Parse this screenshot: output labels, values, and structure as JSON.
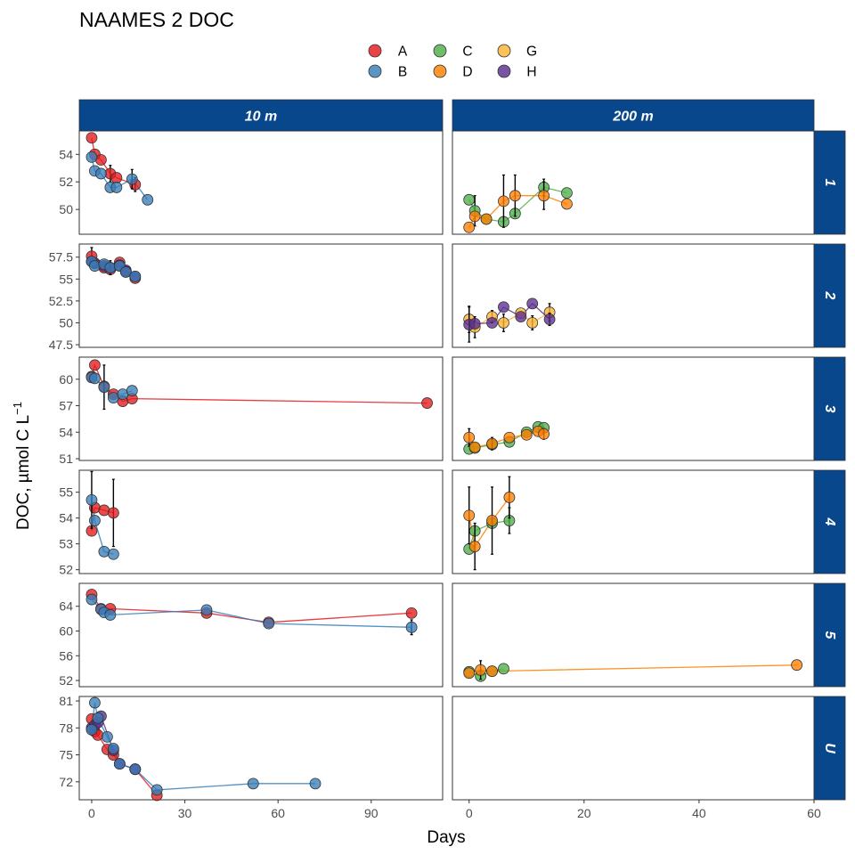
{
  "chart_data": {
    "type": "scatter",
    "title": "NAAMES 2 DOC",
    "xlabel": "Days",
    "ylabel_main": "DOC, µmol C L",
    "ylabel_sup": "−1",
    "column_strips": [
      "10 m",
      "200 m"
    ],
    "row_strips": [
      "1",
      "2",
      "3",
      "4",
      "5",
      "U"
    ],
    "xlim_left": [
      -4,
      113
    ],
    "xticks_left": [
      0,
      30,
      60,
      90
    ],
    "xlim_right": [
      -2.9,
      60
    ],
    "xticks_right": [
      0,
      20,
      40,
      60
    ],
    "colors": {
      "A": "#e41a1c",
      "B": "#377eb8",
      "C": "#4daf4a",
      "D": "#ff7f00",
      "G": "#fdb333",
      "H": "#5c2d91",
      "strip": "#08478c",
      "strip_text": "#ffffff"
    },
    "legend": {
      "placement": "top",
      "entries": [
        "A",
        "B",
        "C",
        "D",
        "G",
        "H"
      ]
    },
    "panels": [
      {
        "row": "1",
        "ylim": [
          48.2,
          55.7
        ],
        "yticks": [
          50,
          52,
          54
        ],
        "left": [
          {
            "name": "A",
            "points": [
              [
                0,
                55.2,
                0
              ],
              [
                1,
                54.0,
                0
              ],
              [
                3,
                53.6,
                0
              ],
              [
                6,
                52.6,
                0.6
              ],
              [
                8,
                52.3,
                0
              ],
              [
                14,
                51.8,
                0.5
              ]
            ]
          },
          {
            "name": "B",
            "points": [
              [
                0,
                53.8,
                0
              ],
              [
                1,
                52.8,
                0
              ],
              [
                3,
                52.6,
                0
              ],
              [
                6,
                51.6,
                0
              ],
              [
                8,
                51.6,
                0
              ],
              [
                13,
                52.2,
                0.7
              ],
              [
                18,
                50.7,
                0
              ]
            ]
          }
        ],
        "right": [
          {
            "name": "C",
            "points": [
              [
                0,
                50.7,
                0
              ],
              [
                1,
                49.9,
                1.1
              ],
              [
                3,
                49.3,
                0
              ],
              [
                6,
                49.1,
                0
              ],
              [
                8,
                49.7,
                0
              ],
              [
                13,
                51.6,
                0.6
              ],
              [
                17,
                51.2,
                0
              ]
            ]
          },
          {
            "name": "D",
            "points": [
              [
                0,
                48.7,
                0
              ],
              [
                1,
                49.5,
                0
              ],
              [
                3,
                49.3,
                0
              ],
              [
                6,
                50.6,
                1.9
              ],
              [
                8,
                51.0,
                1.5
              ],
              [
                13,
                51.0,
                1.0
              ],
              [
                17,
                50.4,
                0
              ]
            ]
          }
        ]
      },
      {
        "row": "2",
        "ylim": [
          47.2,
          59.0
        ],
        "yticks": [
          47.5,
          50.0,
          52.5,
          55.0,
          57.5
        ],
        "left": [
          {
            "name": "A",
            "points": [
              [
                0,
                57.6,
                1.0
              ],
              [
                1,
                56.8,
                0
              ],
              [
                4,
                56.3,
                0
              ],
              [
                6,
                56.1,
                0
              ],
              [
                9,
                56.9,
                0
              ],
              [
                11,
                55.9,
                0
              ],
              [
                14,
                55.1,
                0
              ]
            ]
          },
          {
            "name": "H",
            "points": [
              [
                0,
                57.0,
                0
              ],
              [
                1,
                56.8,
                0
              ],
              [
                4,
                56.5,
                0
              ],
              [
                6,
                56.3,
                0.8
              ],
              [
                9,
                56.6,
                0
              ],
              [
                11,
                56.0,
                0
              ],
              [
                14,
                55.3,
                0
              ]
            ]
          },
          {
            "name": "B",
            "points": [
              [
                0,
                57.0,
                0
              ],
              [
                1,
                56.5,
                0
              ],
              [
                4,
                56.7,
                0
              ],
              [
                6,
                56.3,
                0
              ],
              [
                9,
                56.5,
                0
              ],
              [
                11,
                55.8,
                0
              ],
              [
                14,
                55.3,
                0
              ]
            ]
          }
        ],
        "right": [
          {
            "name": "G",
            "points": [
              [
                0,
                50.4,
                1.5
              ],
              [
                1,
                49.5,
                1.2
              ],
              [
                4,
                50.7,
                0.7
              ],
              [
                6,
                50.0,
                1.0
              ],
              [
                9,
                51.1,
                0
              ],
              [
                11,
                50.0,
                0.8
              ],
              [
                14,
                51.2,
                1.0
              ]
            ]
          },
          {
            "name": "H",
            "points": [
              [
                0,
                49.8,
                2.0
              ],
              [
                1,
                49.9,
                0
              ],
              [
                4,
                50.0,
                0
              ],
              [
                6,
                51.8,
                0
              ],
              [
                9,
                50.7,
                0
              ],
              [
                11,
                52.2,
                0
              ],
              [
                14,
                50.4,
                0.7
              ]
            ]
          }
        ]
      },
      {
        "row": "3",
        "ylim": [
          50.8,
          62.5
        ],
        "yticks": [
          51,
          54,
          57,
          60
        ],
        "left": [
          {
            "name": "A",
            "points": [
              [
                0,
                60.3,
                0
              ],
              [
                1,
                61.6,
                0
              ],
              [
                4,
                59.2,
                0
              ],
              [
                7,
                58.3,
                0
              ],
              [
                10,
                57.5,
                0
              ],
              [
                13,
                57.8,
                0
              ],
              [
                108,
                57.3,
                0
              ]
            ]
          },
          {
            "name": "B",
            "points": [
              [
                0,
                60.2,
                0
              ],
              [
                1,
                60.1,
                0
              ],
              [
                4,
                59.1,
                2.5
              ],
              [
                7,
                57.9,
                0
              ],
              [
                10,
                58.3,
                0
              ],
              [
                13,
                58.7,
                0
              ]
            ]
          }
        ],
        "right": [
          {
            "name": "C",
            "points": [
              [
                0,
                52.1,
                0
              ],
              [
                1,
                52.2,
                0
              ],
              [
                4,
                52.6,
                0
              ],
              [
                7,
                52.9,
                0
              ],
              [
                10,
                54.0,
                0
              ],
              [
                12,
                54.6,
                0
              ],
              [
                13,
                54.5,
                0
              ]
            ]
          },
          {
            "name": "D",
            "points": [
              [
                0,
                53.4,
                1.0
              ],
              [
                1,
                52.3,
                0
              ],
              [
                4,
                52.7,
                0.7
              ],
              [
                7,
                53.4,
                0
              ],
              [
                10,
                53.7,
                0
              ],
              [
                12,
                54.1,
                0
              ],
              [
                13,
                53.8,
                0.6
              ]
            ]
          }
        ]
      },
      {
        "row": "4",
        "ylim": [
          51.85,
          55.85
        ],
        "yticks": [
          52,
          53,
          54,
          55
        ],
        "left": [
          {
            "name": "A",
            "points": [
              [
                0,
                53.5,
                0
              ],
              [
                1,
                54.4,
                0
              ],
              [
                4,
                54.3,
                0
              ],
              [
                7,
                54.2,
                1.3
              ]
            ]
          },
          {
            "name": "B",
            "points": [
              [
                0,
                54.7,
                1.1
              ],
              [
                1,
                53.9,
                0
              ],
              [
                4,
                52.7,
                0
              ],
              [
                7,
                52.6,
                0
              ]
            ]
          }
        ],
        "right": [
          {
            "name": "C",
            "points": [
              [
                0,
                52.8,
                0
              ],
              [
                1,
                53.5,
                0
              ],
              [
                4,
                53.8,
                0
              ],
              [
                7,
                53.9,
                0.5
              ]
            ]
          },
          {
            "name": "D",
            "points": [
              [
                0,
                54.1,
                1.1
              ],
              [
                1,
                52.9,
                0.9
              ],
              [
                4,
                53.9,
                1.3
              ],
              [
                7,
                54.8,
                0.8
              ]
            ]
          }
        ]
      },
      {
        "row": "5",
        "ylim": [
          51.0,
          67.7
        ],
        "yticks": [
          52,
          56,
          60,
          64
        ],
        "left": [
          {
            "name": "A",
            "points": [
              [
                0,
                65.9,
                0
              ],
              [
                3,
                63.6,
                0
              ],
              [
                6,
                63.6,
                0
              ],
              [
                37,
                62.9,
                0
              ],
              [
                57,
                61.4,
                0
              ],
              [
                103,
                62.9,
                0
              ]
            ]
          },
          {
            "name": "B",
            "points": [
              [
                0,
                65.1,
                0
              ],
              [
                3,
                63.5,
                0
              ],
              [
                4,
                63.0,
                0
              ],
              [
                6,
                62.6,
                0
              ],
              [
                37,
                63.4,
                0
              ],
              [
                57,
                61.2,
                0
              ],
              [
                103,
                60.6,
                1.2
              ]
            ]
          }
        ],
        "right": [
          {
            "name": "C",
            "points": [
              [
                0,
                53.4,
                0
              ],
              [
                2,
                52.7,
                0
              ],
              [
                4,
                53.5,
                0
              ],
              [
                6,
                53.9,
                0
              ]
            ]
          },
          {
            "name": "D",
            "points": [
              [
                0,
                53.2,
                0
              ],
              [
                2,
                53.7,
                1.5
              ],
              [
                4,
                53.5,
                0
              ],
              [
                57,
                54.5,
                0
              ]
            ]
          }
        ]
      },
      {
        "row": "U",
        "ylim": [
          70.0,
          81.5
        ],
        "yticks": [
          72,
          75,
          78,
          81
        ],
        "left": [
          {
            "name": "A",
            "points": [
              [
                0,
                79.0,
                0
              ],
              [
                1,
                77.6,
                0
              ],
              [
                2,
                77.2,
                0
              ],
              [
                5,
                75.6,
                0
              ],
              [
                7,
                75.0,
                0
              ],
              [
                9,
                74.0,
                0
              ],
              [
                14,
                73.4,
                0
              ],
              [
                21,
                70.5,
                0
              ]
            ]
          },
          {
            "name": "H",
            "points": [
              [
                0,
                78.0,
                0
              ],
              [
                1,
                78.3,
                0
              ],
              [
                2,
                78.6,
                0
              ],
              [
                3,
                79.3,
                0
              ],
              [
                7,
                75.5,
                0
              ],
              [
                9,
                74.0,
                0
              ],
              [
                14,
                73.4,
                0
              ]
            ]
          },
          {
            "name": "B",
            "points": [
              [
                0,
                77.8,
                0
              ],
              [
                1,
                80.8,
                0
              ],
              [
                2,
                79.1,
                0
              ],
              [
                5,
                77.0,
                0
              ],
              [
                7,
                75.7,
                0
              ],
              [
                9,
                74.0,
                0
              ],
              [
                14,
                73.4,
                0
              ],
              [
                21,
                71.1,
                0
              ],
              [
                52,
                71.8,
                0
              ],
              [
                72,
                71.8,
                0
              ]
            ]
          }
        ],
        "right": []
      }
    ]
  }
}
